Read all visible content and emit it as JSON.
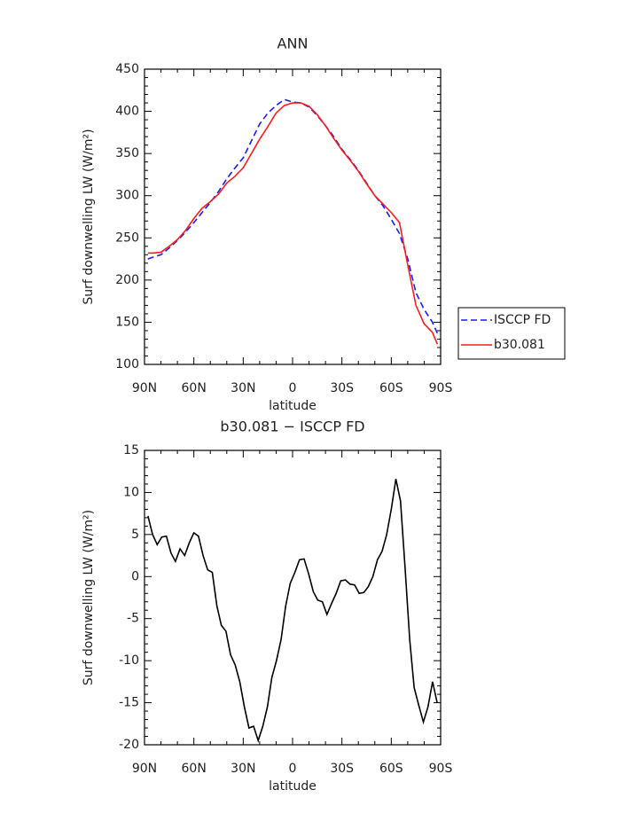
{
  "chart_data": [
    {
      "type": "line",
      "title": "ANN",
      "x_label": "latitude",
      "y_label": "Surf downwelling LW (W/m²)",
      "x": [
        88,
        85,
        80,
        75,
        70,
        65,
        60,
        55,
        50,
        45,
        40,
        35,
        30,
        25,
        20,
        15,
        10,
        5,
        0,
        -5,
        -10,
        -15,
        -20,
        -25,
        -30,
        -35,
        -40,
        -45,
        -50,
        -55,
        -60,
        -65,
        -70,
        -75,
        -80,
        -85,
        -88
      ],
      "series": [
        {
          "name": "ISCCP FD",
          "color": "#1a1aff",
          "linestyle": "dashed",
          "values": [
            225,
            227,
            230,
            238,
            247,
            257,
            268,
            280,
            292,
            305,
            320,
            333,
            345,
            365,
            385,
            398,
            407,
            414,
            411,
            410,
            405,
            395,
            383,
            370,
            355,
            343,
            330,
            315,
            300,
            288,
            272,
            255,
            225,
            185,
            165,
            150,
            137
          ]
        },
        {
          "name": "b30.081",
          "color": "#ff1a1a",
          "linestyle": "solid",
          "values": [
            232,
            232,
            233,
            240,
            248,
            259,
            273,
            285,
            293,
            302,
            315,
            323,
            333,
            350,
            367,
            382,
            398,
            407,
            410,
            410,
            406,
            396,
            383,
            368,
            354,
            342,
            329,
            314,
            300,
            290,
            280,
            268,
            218,
            170,
            148,
            138,
            124
          ]
        }
      ],
      "xlim": [
        90,
        -90
      ],
      "xticks": [
        {
          "value": 90,
          "label": "90N"
        },
        {
          "value": 60,
          "label": "60N"
        },
        {
          "value": 30,
          "label": "30N"
        },
        0,
        {
          "value": -30,
          "label": "30S"
        },
        {
          "value": -60,
          "label": "60S"
        },
        {
          "value": -90,
          "label": "90S"
        }
      ],
      "ylim": [
        100,
        450
      ],
      "yticks": [
        100,
        150,
        200,
        250,
        300,
        350,
        400,
        450
      ],
      "legend": "right"
    },
    {
      "type": "line",
      "title": "b30.081 − ISCCP FD",
      "x_label": "latitude",
      "y_label": "Surf downwelling LW (W/m²)",
      "x": [
        87.9,
        85.1,
        82.3,
        79.5,
        76.7,
        73.9,
        71.2,
        68.4,
        65.6,
        62.8,
        60.0,
        57.2,
        54.4,
        51.6,
        48.8,
        46.0,
        43.3,
        40.5,
        37.7,
        34.9,
        32.1,
        29.3,
        26.5,
        23.7,
        20.9,
        18.1,
        15.3,
        12.6,
        9.8,
        7.0,
        4.2,
        1.4,
        -1.4,
        -4.2,
        -7.0,
        -9.8,
        -12.6,
        -15.3,
        -18.1,
        -20.9,
        -23.7,
        -26.5,
        -29.3,
        -32.1,
        -34.9,
        -37.7,
        -40.5,
        -43.3,
        -46.0,
        -48.8,
        -51.6,
        -54.4,
        -57.2,
        -60.0,
        -62.8,
        -65.6,
        -68.4,
        -71.2,
        -73.9,
        -76.7,
        -79.5,
        -82.3,
        -85.1,
        -87.9
      ],
      "values": [
        7.2,
        5,
        3.8,
        4.7,
        4.8,
        2.8,
        1.8,
        3.3,
        2.5,
        4,
        5.2,
        4.8,
        2.5,
        0.8,
        0.5,
        -3.5,
        -5.8,
        -6.5,
        -9.3,
        -10.5,
        -12.5,
        -15.5,
        -18,
        -17.8,
        -19.5,
        -17.8,
        -15.5,
        -12,
        -10,
        -7.5,
        -3.5,
        -0.8,
        0.5,
        2,
        2.1,
        0.3,
        -1.8,
        -2.8,
        -3,
        -4.5,
        -3.2,
        -2,
        -0.5,
        -0.4,
        -0.9,
        -1,
        -2,
        -1.9,
        -1.2,
        0,
        2,
        3,
        5,
        8,
        11.6,
        9,
        1,
        -7.5,
        -13.2,
        -15.3,
        -17.3,
        -15.5,
        -12.5,
        -15
      ],
      "color": "#000000",
      "xlim": [
        90,
        -90
      ],
      "xticks": [
        {
          "value": 90,
          "label": "90N"
        },
        {
          "value": 60,
          "label": "60N"
        },
        {
          "value": 30,
          "label": "30N"
        },
        0,
        {
          "value": -30,
          "label": "30S"
        },
        {
          "value": -60,
          "label": "60S"
        },
        {
          "value": -90,
          "label": "90S"
        }
      ],
      "ylim": [
        -20,
        15
      ],
      "yticks": [
        -20,
        -15,
        -10,
        -5,
        0,
        5,
        10,
        15
      ]
    }
  ]
}
